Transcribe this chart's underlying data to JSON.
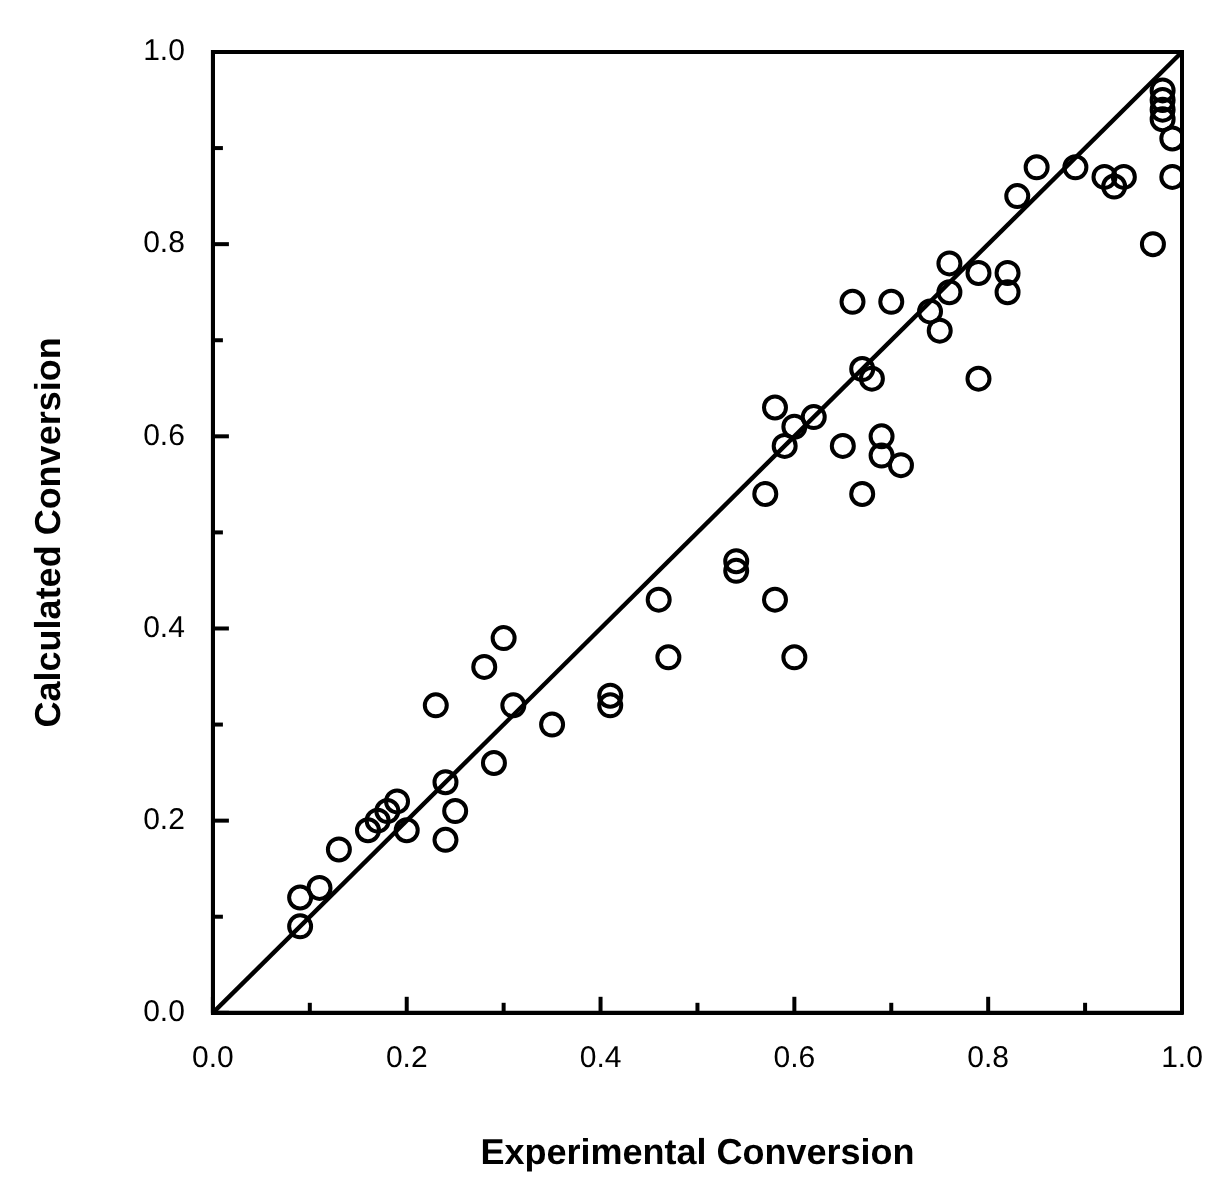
{
  "chart_data": {
    "type": "scatter",
    "xlabel": "Experimental Conversion",
    "ylabel": "Calculated Conversion",
    "xlim": [
      0,
      1
    ],
    "ylim": [
      0,
      1
    ],
    "xticks": [
      {
        "value": 0,
        "label": "0.0"
      },
      {
        "value": 0.1,
        "label": null
      },
      {
        "value": 0.2,
        "label": "0.2"
      },
      {
        "value": 0.3,
        "label": null
      },
      {
        "value": 0.4,
        "label": "0.4"
      },
      {
        "value": 0.5,
        "label": null
      },
      {
        "value": 0.6,
        "label": "0.6"
      },
      {
        "value": 0.7,
        "label": null
      },
      {
        "value": 0.8,
        "label": "0.8"
      },
      {
        "value": 0.9,
        "label": null
      },
      {
        "value": 1,
        "label": "1.0"
      }
    ],
    "yticks": [
      {
        "value": 0,
        "label": "0.0"
      },
      {
        "value": 0.1,
        "label": null
      },
      {
        "value": 0.2,
        "label": "0.2"
      },
      {
        "value": 0.3,
        "label": null
      },
      {
        "value": 0.4,
        "label": "0.4"
      },
      {
        "value": 0.5,
        "label": null
      },
      {
        "value": 0.6,
        "label": "0.6"
      },
      {
        "value": 0.7,
        "label": null
      },
      {
        "value": 0.8,
        "label": "0.8"
      },
      {
        "value": 0.9,
        "label": null
      },
      {
        "value": 1,
        "label": "1.0"
      }
    ],
    "marker": "circle",
    "series": [
      {
        "type": "scatter",
        "color": "#000000",
        "x": [
          0.09,
          0.09,
          0.11,
          0.13,
          0.16,
          0.17,
          0.18,
          0.19,
          0.2,
          0.23,
          0.24,
          0.24,
          0.25,
          0.28,
          0.29,
          0.3,
          0.31,
          0.35,
          0.41,
          0.41,
          0.46,
          0.47,
          0.54,
          0.54,
          0.57,
          0.58,
          0.58,
          0.59,
          0.6,
          0.6,
          0.62,
          0.65,
          0.66,
          0.67,
          0.67,
          0.68,
          0.69,
          0.69,
          0.7,
          0.71,
          0.74,
          0.75,
          0.76,
          0.76,
          0.79,
          0.79,
          0.82,
          0.82,
          0.83,
          0.85,
          0.89,
          0.92,
          0.93,
          0.94,
          0.97,
          0.98,
          0.98,
          0.98,
          0.99,
          0.99,
          0.98
        ],
        "values": [
          0.12,
          0.09,
          0.13,
          0.17,
          0.19,
          0.2,
          0.21,
          0.22,
          0.19,
          0.32,
          0.24,
          0.18,
          0.21,
          0.36,
          0.26,
          0.39,
          0.32,
          0.3,
          0.33,
          0.32,
          0.43,
          0.37,
          0.47,
          0.46,
          0.54,
          0.63,
          0.43,
          0.59,
          0.61,
          0.37,
          0.62,
          0.59,
          0.74,
          0.54,
          0.67,
          0.66,
          0.58,
          0.6,
          0.74,
          0.57,
          0.73,
          0.71,
          0.75,
          0.78,
          0.66,
          0.77,
          0.77,
          0.75,
          0.85,
          0.88,
          0.88,
          0.87,
          0.86,
          0.87,
          0.8,
          0.95,
          0.94,
          0.93,
          0.91,
          0.87,
          0.96
        ]
      },
      {
        "type": "line",
        "color": "#000000",
        "line_style": "solid",
        "marker": "none",
        "x": [
          0,
          1
        ],
        "values": [
          0,
          1
        ]
      }
    ]
  }
}
